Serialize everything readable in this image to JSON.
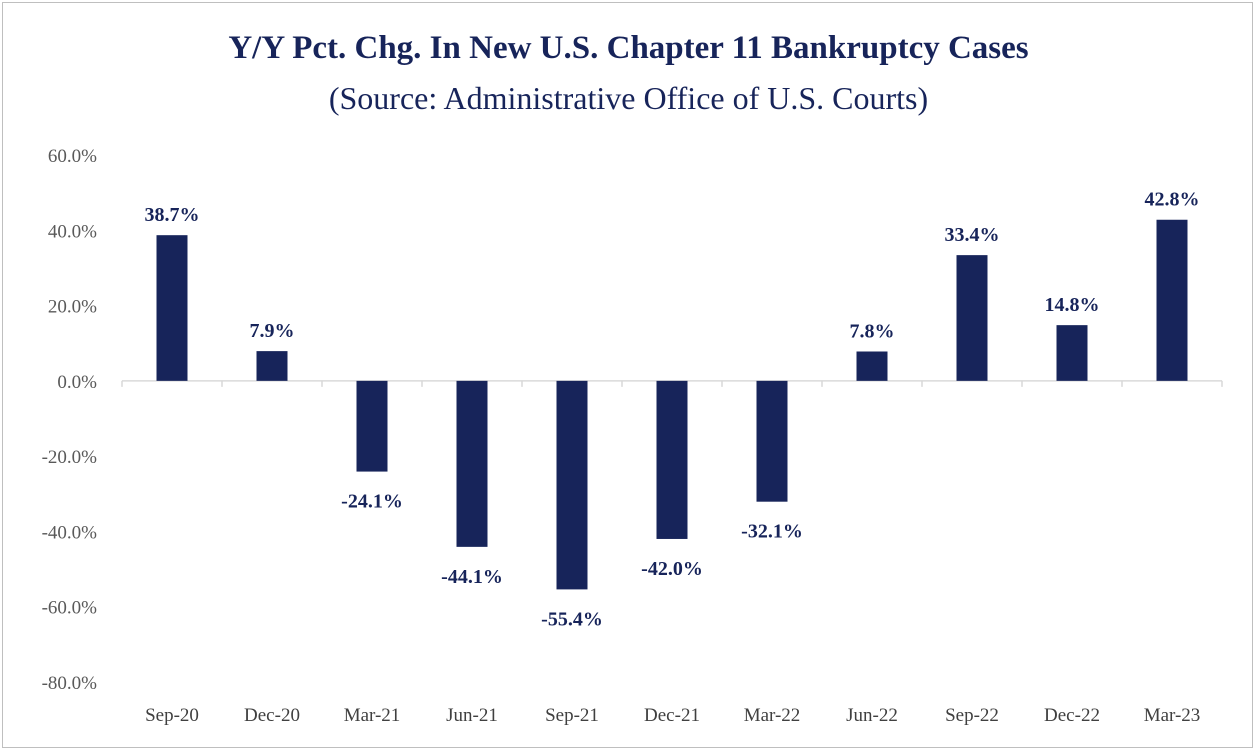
{
  "chart_data": {
    "type": "bar",
    "title": "Y/Y Pct. Chg. In New U.S. Chapter 11 Bankruptcy Cases",
    "subtitle": "(Source: Administrative Office of U.S. Courts)",
    "categories": [
      "Sep-20",
      "Dec-20",
      "Mar-21",
      "Jun-21",
      "Sep-21",
      "Dec-21",
      "Mar-22",
      "Jun-22",
      "Sep-22",
      "Dec-22",
      "Mar-23"
    ],
    "values": [
      38.7,
      7.9,
      -24.1,
      -44.1,
      -55.4,
      -42.0,
      -32.1,
      7.8,
      33.4,
      14.8,
      42.8
    ],
    "data_labels": [
      "38.7%",
      "7.9%",
      "-24.1%",
      "-44.1%",
      "-55.4%",
      "-42.0%",
      "-32.1%",
      "7.8%",
      "33.4%",
      "14.8%",
      "42.8%"
    ],
    "ylim": [
      -80,
      60
    ],
    "yticks": [
      60,
      40,
      20,
      0,
      -20,
      -40,
      -60,
      -80
    ],
    "ytick_labels": [
      "60.0%",
      "40.0%",
      "20.0%",
      "0.0%",
      "-20.0%",
      "-40.0%",
      "-60.0%",
      "-80.0%"
    ],
    "xlabel": "",
    "ylabel": "",
    "grid": false,
    "legend": "none",
    "bar_color": "#17245a"
  }
}
